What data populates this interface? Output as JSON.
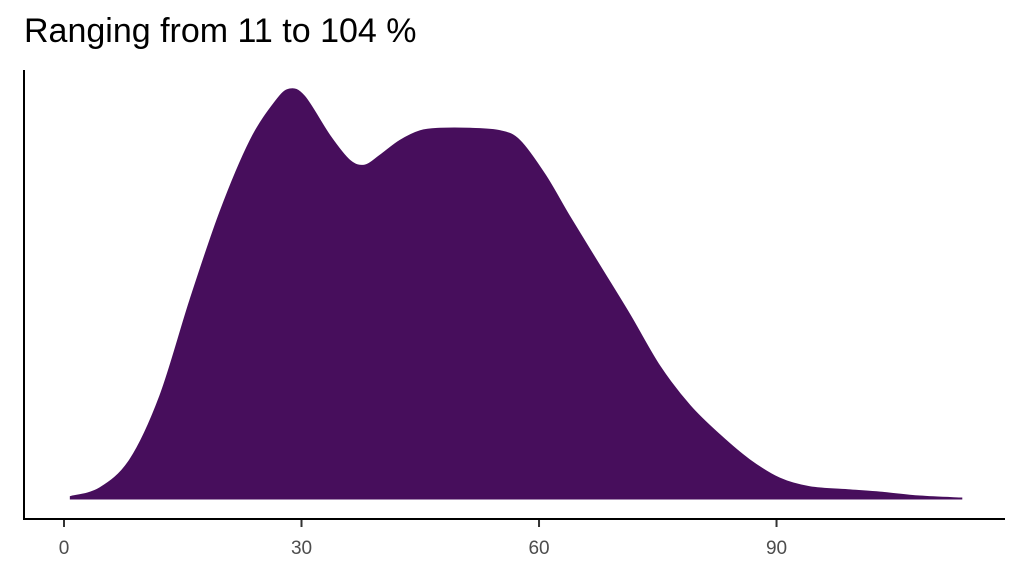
{
  "chart_data": {
    "type": "area",
    "subtype": "density",
    "title": "Ranging from 11 to 104 %",
    "xlabel": "",
    "ylabel": "",
    "xlim": [
      -5,
      119
    ],
    "ylim": [
      0,
      0.0175
    ],
    "x_ticks": [
      0,
      30,
      60,
      90
    ],
    "x_tick_labels": [
      "0",
      "30",
      "60",
      "90"
    ],
    "y_ticks": [],
    "grid": false,
    "legend": "none",
    "fill_color": "#470E5C",
    "x": [
      0.8,
      4.5,
      8.3,
      12.1,
      15.9,
      19.7,
      23.5,
      26.7,
      28.5,
      30.4,
      33.6,
      36.1,
      38.0,
      39.9,
      42.4,
      45.0,
      47.5,
      51.3,
      55.1,
      57.6,
      60.8,
      63.9,
      67.7,
      71.5,
      75.3,
      79.1,
      82.9,
      86.6,
      90.4,
      94.2,
      99.3,
      103.1,
      108.1,
      113.4
    ],
    "y": [
      0.0001,
      0.00045,
      0.0016,
      0.0042,
      0.0081,
      0.0117,
      0.0146,
      0.0162,
      0.0167,
      0.0164,
      0.0148,
      0.0138,
      0.0136,
      0.014,
      0.0146,
      0.015,
      0.0151,
      0.0151,
      0.015,
      0.0146,
      0.0132,
      0.0115,
      0.0095,
      0.0075,
      0.0054,
      0.0038,
      0.0026,
      0.0016,
      0.00085,
      0.0005,
      0.00037,
      0.00028,
      0.00012,
      4e-05
    ]
  }
}
